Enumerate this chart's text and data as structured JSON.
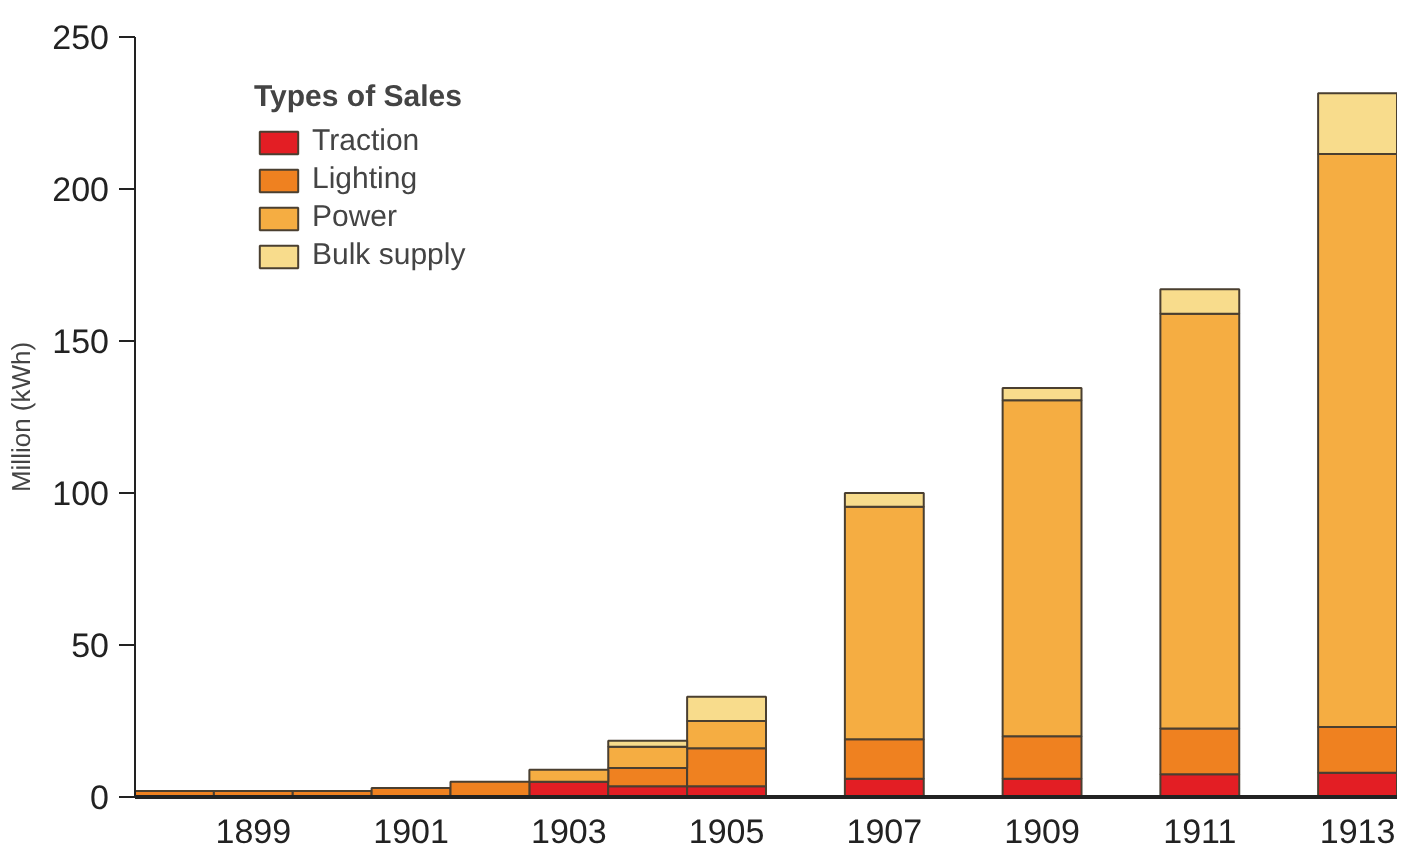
{
  "chart_data": {
    "type": "bar",
    "stacked": true,
    "ylabel": "Million (kWh)",
    "legend_title": "Types of Sales",
    "legend": "top left",
    "grid": false,
    "x": [
      1898,
      1899,
      1900,
      1901,
      1902,
      1903,
      1904,
      1905,
      1907,
      1909,
      1911,
      1913
    ],
    "xlim": [
      1897.5,
      1913.5
    ],
    "xticks": [
      1899,
      1901,
      1903,
      1905,
      1907,
      1909,
      1911,
      1913
    ],
    "ylim": [
      0,
      250
    ],
    "yticks": [
      0,
      50,
      100,
      150,
      200,
      250
    ],
    "series": [
      {
        "name": "Traction",
        "color": "#e31e24",
        "values": [
          null,
          null,
          null,
          null,
          null,
          5,
          3.5,
          3.5,
          6,
          6,
          7.5,
          8
        ]
      },
      {
        "name": "Lighting",
        "color": "#ef8120",
        "values": [
          2,
          2,
          2,
          3,
          5,
          null,
          6,
          12.5,
          13,
          14,
          15,
          15
        ]
      },
      {
        "name": "Power",
        "color": "#f5ad42",
        "values": [
          null,
          null,
          null,
          null,
          null,
          4,
          7,
          9,
          76.5,
          110.5,
          136.5,
          188.5
        ]
      },
      {
        "name": "Bulk supply",
        "color": "#f8dc8c",
        "values": [
          null,
          null,
          null,
          null,
          null,
          null,
          2,
          8,
          4.5,
          4,
          8,
          20
        ]
      }
    ]
  }
}
